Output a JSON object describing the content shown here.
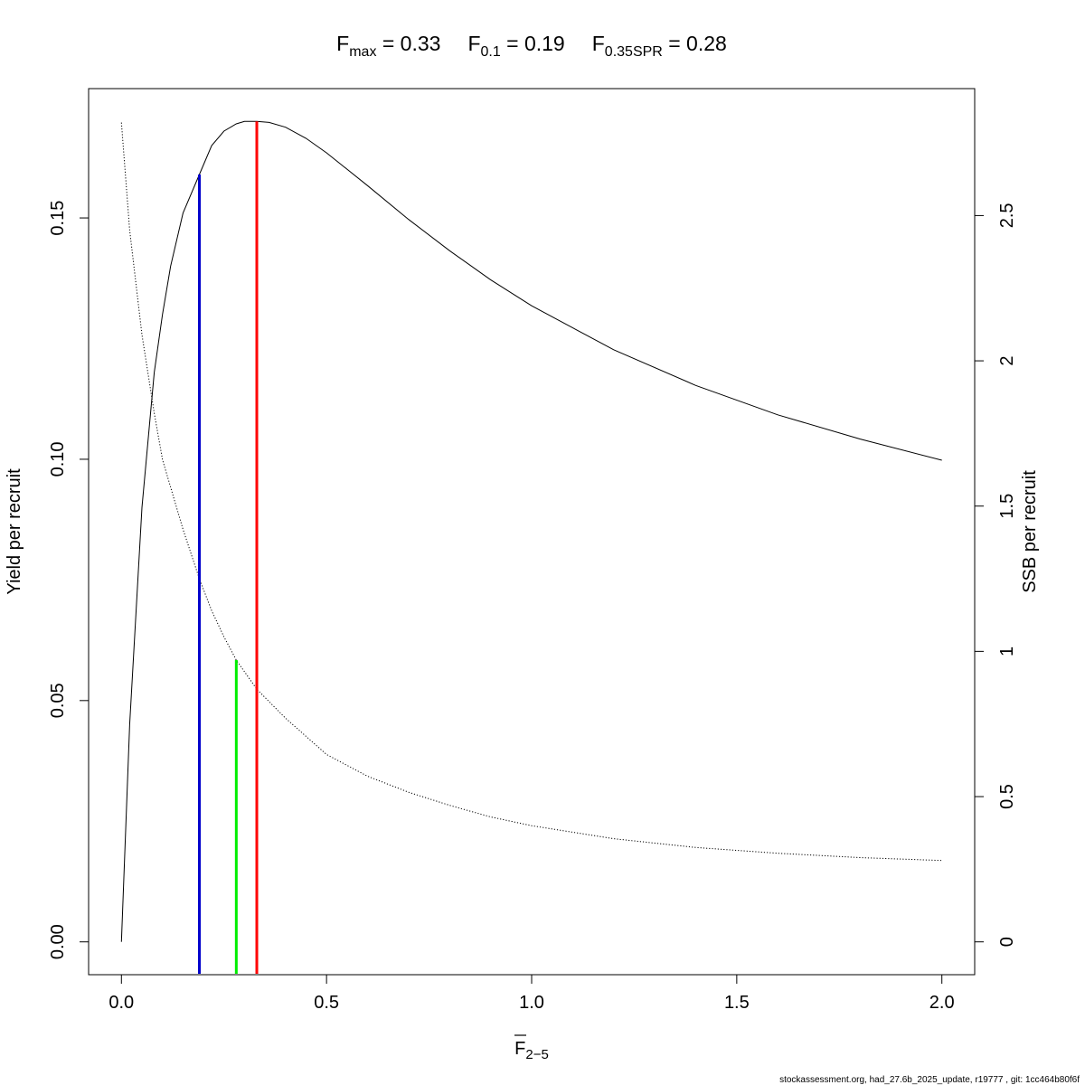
{
  "chart_data": {
    "type": "line",
    "title_parts": [
      {
        "main": "F",
        "sub": "max",
        "rest": " = 0.33"
      },
      {
        "main": "F",
        "sub": "0.1",
        "rest": " = 0.19"
      },
      {
        "main": "F",
        "sub": "0.35SPR",
        "rest": " = 0.28"
      }
    ],
    "xlabel": {
      "main": "F",
      "sub": "2−5",
      "overline": true
    },
    "ylabel": "Yield per recruit",
    "y2label": "SSB per recruit",
    "xlim": [
      -0.08,
      2.08
    ],
    "ylim": [
      -0.0068,
      0.1768
    ],
    "y2lim": [
      -0.113,
      2.937
    ],
    "x_ticks": [
      0.0,
      0.5,
      1.0,
      1.5,
      2.0
    ],
    "x_tick_labels": [
      "0.0",
      "0.5",
      "1.0",
      "1.5",
      "2.0"
    ],
    "y_ticks": [
      0.0,
      0.05,
      0.1,
      0.15
    ],
    "y_tick_labels": [
      "0.00",
      "0.05",
      "0.10",
      "0.15"
    ],
    "y2_ticks": [
      0,
      0.5,
      1,
      1.5,
      2,
      2.5
    ],
    "y2_tick_labels": [
      "0",
      "0.5",
      "1",
      "1.5",
      "2",
      "2.5"
    ],
    "series": [
      {
        "axis": "left",
        "style": "solid",
        "color": "#000000",
        "x": [
          0,
          0.02,
          0.05,
          0.08,
          0.1,
          0.12,
          0.15,
          0.19,
          0.22,
          0.25,
          0.28,
          0.3,
          0.33,
          0.36,
          0.4,
          0.45,
          0.5,
          0.6,
          0.7,
          0.8,
          0.9,
          1.0,
          1.2,
          1.4,
          1.6,
          1.8,
          2.0
        ],
        "values": [
          0.0,
          0.045,
          0.09,
          0.118,
          0.13,
          0.14,
          0.151,
          0.159,
          0.165,
          0.168,
          0.1695,
          0.17,
          0.17,
          0.1698,
          0.1688,
          0.1665,
          0.1635,
          0.1567,
          0.1497,
          0.1432,
          0.1372,
          0.1318,
          0.1227,
          0.1153,
          0.1092,
          0.1042,
          0.0998
        ]
      },
      {
        "axis": "right",
        "style": "dotted",
        "color": "#000000",
        "x": [
          0,
          0.02,
          0.05,
          0.08,
          0.1,
          0.15,
          0.19,
          0.22,
          0.25,
          0.28,
          0.33,
          0.4,
          0.5,
          0.6,
          0.7,
          0.8,
          0.9,
          1.0,
          1.2,
          1.4,
          1.6,
          1.8,
          2.0
        ],
        "values": [
          2.82,
          2.45,
          2.09,
          1.82,
          1.66,
          1.42,
          1.25,
          1.14,
          1.05,
          0.97,
          0.87,
          0.77,
          0.645,
          0.57,
          0.515,
          0.47,
          0.43,
          0.4,
          0.355,
          0.325,
          0.305,
          0.29,
          0.28
        ]
      }
    ],
    "reference_lines": [
      {
        "name": "Fmax",
        "x": 0.33,
        "y_top": 0.17,
        "axis": "left",
        "color": "#ff0000"
      },
      {
        "name": "F0.1",
        "x": 0.19,
        "y_top": 0.159,
        "axis": "left",
        "color": "#0000cc"
      },
      {
        "name": "F0.35SPR",
        "x": 0.28,
        "y_top": 0.97,
        "axis": "right",
        "color": "#00ee00"
      }
    ],
    "grid": false,
    "legend": "none"
  },
  "footer": "stockassessment.org, had_27.6b_2025_update, r19777 , git: 1cc464b80f6f"
}
